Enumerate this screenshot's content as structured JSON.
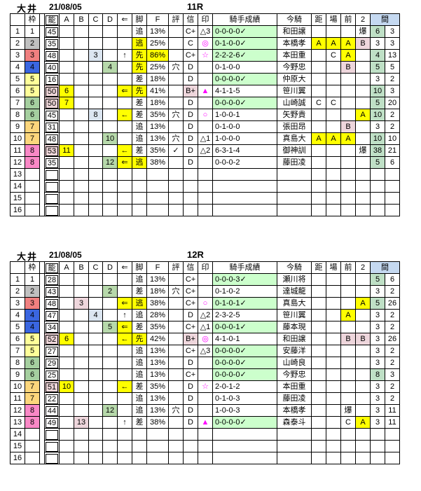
{
  "headers": {
    "blank": "",
    "waku": "枠",
    "nou": "能",
    "A": "A",
    "B": "B",
    "C": "C",
    "D": "D",
    "arrow": "⇐",
    "kyaku": "脚",
    "f": "F",
    "hyo": "評",
    "shin": "信",
    "mark": "印",
    "record": "騎手成績",
    "jockey": "今騎",
    "kyo": "距",
    "ba": "場",
    "mae": "前",
    "two": "2",
    "aida": "間"
  },
  "colors": {
    "highlight_yellow": "#ffff00",
    "pink": "#eed6dc",
    "light_blue": "#dce6f1",
    "pale_green": "#b7d9ab",
    "interval_green": "#bfe0c6",
    "record_green": "#ccffcc",
    "header_blue": "#c5d9f1",
    "mark_magenta": "#ff00ff",
    "frame2_gray": "#c0c0c0",
    "frame3_red": "#f08080",
    "frame4_blue": "#3a66e0",
    "frame5_yellow": "#ffff99",
    "frame6_green": "#a5cf9f",
    "frame7_orange": "#fcd67c",
    "frame8_pink": "#fa88c6"
  },
  "tables": [
    {
      "track": "大井",
      "date": "21/08/05",
      "race": "11R",
      "rows": [
        {
          "num": "1",
          "waku": [
            "1",
            "w1"
          ],
          "nou": [
            "45",
            ""
          ],
          "kyaku": [
            "追",
            ""
          ],
          "f": [
            "13%",
            ""
          ],
          "shin": [
            "C+",
            ""
          ],
          "mark": [
            "△3",
            ""
          ],
          "record": [
            "0-0-0-0✓",
            "gg"
          ],
          "jockey": "和田譲",
          "two": [
            "爆",
            ""
          ],
          "m1": [
            "6",
            "mg"
          ],
          "m2": "3"
        },
        {
          "num": "2",
          "waku": [
            "2",
            "w2"
          ],
          "nou": [
            "35",
            ""
          ],
          "kyaku": [
            "逃",
            "y"
          ],
          "f": [
            "25%",
            ""
          ],
          "shin": [
            "C",
            ""
          ],
          "mark": [
            "◎",
            "m"
          ],
          "record": [
            "0-1-0-0✓",
            "gg"
          ],
          "jockey": "本橋孝",
          "kyo": [
            "A",
            "y"
          ],
          "ba": [
            "A",
            "y"
          ],
          "mae": [
            "A",
            "y"
          ],
          "two": [
            "B",
            "p"
          ],
          "m1": [
            "3",
            ""
          ],
          "m2": "3"
        },
        {
          "num": "3",
          "waku": [
            "3",
            "w3"
          ],
          "nou": [
            "48",
            ""
          ],
          "C": "3",
          "arrow": [
            "↑",
            ""
          ],
          "kyaku": [
            "先",
            "y"
          ],
          "f": [
            "86%",
            "y"
          ],
          "shin": [
            "C+",
            ""
          ],
          "mark": [
            "☆",
            "m"
          ],
          "record": [
            "2-2-2-6✓",
            "gg"
          ],
          "jockey": "本田重",
          "ba": [
            "C",
            ""
          ],
          "mae": [
            "A",
            "y"
          ],
          "m1": [
            "4",
            "mg"
          ],
          "m2": "13"
        },
        {
          "num": "4",
          "waku": [
            "4",
            "w4"
          ],
          "nou": [
            "40",
            ""
          ],
          "D": "4",
          "kyaku": [
            "先",
            "y"
          ],
          "f": [
            "25%",
            ""
          ],
          "hyo": "穴",
          "shin": [
            "D",
            ""
          ],
          "record": [
            "0-1-0-0",
            ""
          ],
          "jockey": "今野忠",
          "mae": [
            "B",
            "p"
          ],
          "m1": [
            "5",
            "mg"
          ],
          "m2": "5"
        },
        {
          "num": "5",
          "waku": [
            "5",
            "w5"
          ],
          "nou": [
            "16",
            ""
          ],
          "kyaku": [
            "差",
            ""
          ],
          "f": [
            "18%",
            ""
          ],
          "shin": [
            "D",
            ""
          ],
          "record": [
            "0-0-0-0✓",
            "gg"
          ],
          "jockey": "仲原大",
          "m1": [
            "3",
            ""
          ],
          "m2": "2"
        },
        {
          "num": "6",
          "waku": [
            "5",
            "w5"
          ],
          "nou": [
            "50",
            "hot"
          ],
          "A": "6",
          "arrow": [
            "⇐",
            "y"
          ],
          "kyaku": [
            "先",
            "y"
          ],
          "f": [
            "41%",
            ""
          ],
          "shin": [
            "B+",
            "p"
          ],
          "mark": [
            "▲",
            "m"
          ],
          "record": [
            "4-1-1-5",
            ""
          ],
          "jockey": "笹川翼",
          "m1": [
            "10",
            "mg"
          ],
          "m2": "3"
        },
        {
          "num": "7",
          "waku": [
            "6",
            "w6"
          ],
          "nou": [
            "50",
            "hot"
          ],
          "A": "7",
          "kyaku": [
            "差",
            ""
          ],
          "f": [
            "18%",
            ""
          ],
          "shin": [
            "D",
            ""
          ],
          "record": [
            "0-0-0-0✓",
            "gg"
          ],
          "jockey": "山崎誠",
          "kyo": [
            "C",
            ""
          ],
          "ba": [
            "C",
            ""
          ],
          "m1": [
            "5",
            "mg"
          ],
          "m2": "20"
        },
        {
          "num": "8",
          "waku": [
            "6",
            "w6"
          ],
          "nou": [
            "45",
            ""
          ],
          "C": "8",
          "arrow": [
            "←",
            "y"
          ],
          "kyaku": [
            "差",
            ""
          ],
          "f": [
            "35%",
            ""
          ],
          "hyo": "穴",
          "shin": [
            "D",
            ""
          ],
          "mark": [
            "○",
            "m"
          ],
          "record": [
            "1-0-0-1",
            ""
          ],
          "jockey": "矢野貴",
          "two": [
            "A",
            "y"
          ],
          "m1": [
            "10",
            "mg"
          ],
          "m2": "2"
        },
        {
          "num": "9",
          "waku": [
            "7",
            "w7"
          ],
          "nou": [
            "31",
            ""
          ],
          "kyaku": [
            "追",
            ""
          ],
          "f": [
            "13%",
            ""
          ],
          "shin": [
            "D",
            ""
          ],
          "record": [
            "0-1-0-0",
            ""
          ],
          "jockey": "張田昂",
          "mae": [
            "B",
            "p"
          ],
          "m1": [
            "3",
            ""
          ],
          "m2": "2"
        },
        {
          "num": "10",
          "waku": [
            "7",
            "w7"
          ],
          "nou": [
            "48",
            ""
          ],
          "D": "10",
          "kyaku": [
            "追",
            ""
          ],
          "f": [
            "13%",
            ""
          ],
          "hyo": "穴",
          "shin": [
            "D",
            ""
          ],
          "mark": [
            "△1",
            ""
          ],
          "record": [
            "1-0-0-0",
            ""
          ],
          "jockey": "真島大",
          "kyo": [
            "A",
            "y"
          ],
          "ba": [
            "A",
            "y"
          ],
          "mae": [
            "A",
            "y"
          ],
          "m1": [
            "10",
            "mg"
          ],
          "m2": "10"
        },
        {
          "num": "11",
          "waku": [
            "8",
            "w8"
          ],
          "nou": [
            "53",
            "hot"
          ],
          "A": "11",
          "arrow": [
            "←",
            "y"
          ],
          "kyaku": [
            "差",
            ""
          ],
          "f": [
            "35%",
            ""
          ],
          "hyo": "✓",
          "shin": [
            "D",
            ""
          ],
          "mark": [
            "△2",
            ""
          ],
          "record": [
            "6-3-1-4",
            ""
          ],
          "jockey": "御神訓",
          "two": [
            "爆",
            ""
          ],
          "m1": [
            "38",
            "mg"
          ],
          "m2": "21"
        },
        {
          "num": "12",
          "waku": [
            "8",
            "w8"
          ],
          "nou": [
            "35",
            ""
          ],
          "D": "12",
          "arrow": [
            "⇐",
            "y"
          ],
          "kyaku": [
            "逃",
            "y"
          ],
          "f": [
            "38%",
            ""
          ],
          "shin": [
            "D",
            ""
          ],
          "record": [
            "0-0-0-2",
            ""
          ],
          "jockey": "藤田凌",
          "m1": [
            "5",
            "mg"
          ],
          "m2": "6"
        },
        {
          "num": "13"
        },
        {
          "num": "14"
        },
        {
          "num": "15"
        },
        {
          "num": "16"
        }
      ]
    },
    {
      "track": "大井",
      "date": "21/08/05",
      "race": "12R",
      "rows": [
        {
          "num": "1",
          "waku": [
            "1",
            "w1"
          ],
          "nou": [
            "28",
            ""
          ],
          "kyaku": [
            "追",
            ""
          ],
          "f": [
            "13%",
            ""
          ],
          "shin": [
            "C+",
            ""
          ],
          "record": [
            "0-0-0-3✓",
            "gg"
          ],
          "jockey": "瀬川将",
          "m1": [
            "5",
            "mg"
          ],
          "m2": "6"
        },
        {
          "num": "2",
          "waku": [
            "2",
            "w2"
          ],
          "nou": [
            "43",
            ""
          ],
          "D": "2",
          "kyaku": [
            "差",
            ""
          ],
          "f": [
            "18%",
            ""
          ],
          "hyo": "穴",
          "shin": [
            "C+",
            ""
          ],
          "record": [
            "0-1-0-2",
            ""
          ],
          "jockey": "達城龍",
          "m1": [
            "3",
            ""
          ],
          "m2": "2"
        },
        {
          "num": "3",
          "waku": [
            "3",
            "w3"
          ],
          "nou": [
            "48",
            ""
          ],
          "B": "3",
          "arrow": [
            "⇐",
            "y"
          ],
          "kyaku": [
            "逃",
            "y"
          ],
          "f": [
            "38%",
            ""
          ],
          "shin": [
            "C+",
            ""
          ],
          "mark": [
            "○",
            "m"
          ],
          "record": [
            "0-1-0-1✓",
            "gg"
          ],
          "jockey": "真島大",
          "two": [
            "A",
            "y"
          ],
          "m1": [
            "5",
            "mg"
          ],
          "m2": "26"
        },
        {
          "num": "4",
          "waku": [
            "4",
            "w4"
          ],
          "nou": [
            "47",
            ""
          ],
          "C": "4",
          "arrow": [
            "↑",
            ""
          ],
          "kyaku": [
            "追",
            ""
          ],
          "f": [
            "28%",
            ""
          ],
          "shin": [
            "D",
            ""
          ],
          "mark": [
            "△2",
            ""
          ],
          "record": [
            "2-3-2-5",
            ""
          ],
          "jockey": "笹川翼",
          "mae": [
            "A",
            "y"
          ],
          "m1": [
            "3",
            ""
          ],
          "m2": "2"
        },
        {
          "num": "5",
          "waku": [
            "4",
            "w4"
          ],
          "nou": [
            "34",
            ""
          ],
          "D": "5",
          "arrow": [
            "⇐",
            "y"
          ],
          "kyaku": [
            "差",
            ""
          ],
          "f": [
            "35%",
            ""
          ],
          "shin": [
            "C+",
            ""
          ],
          "mark": [
            "△1",
            ""
          ],
          "record": [
            "0-0-0-1✓",
            "gg"
          ],
          "jockey": "藤本現",
          "m1": [
            "3",
            ""
          ],
          "m2": "2"
        },
        {
          "num": "6",
          "waku": [
            "5",
            "w5"
          ],
          "nou": [
            "52",
            "hot"
          ],
          "A": "6",
          "arrow": [
            "←",
            "y"
          ],
          "kyaku": [
            "先",
            "y"
          ],
          "f": [
            "42%",
            ""
          ],
          "shin": [
            "B+",
            "p"
          ],
          "mark": [
            "◎",
            "m"
          ],
          "record": [
            "4-1-0-1",
            ""
          ],
          "jockey": "和田譲",
          "mae": [
            "B",
            "p"
          ],
          "two": [
            "B",
            "p"
          ],
          "m1": [
            "3",
            ""
          ],
          "m2": "26"
        },
        {
          "num": "7",
          "waku": [
            "5",
            "w5"
          ],
          "nou": [
            "27",
            ""
          ],
          "kyaku": [
            "追",
            ""
          ],
          "f": [
            "13%",
            ""
          ],
          "shin": [
            "C+",
            ""
          ],
          "mark": [
            "△3",
            ""
          ],
          "record": [
            "0-0-0-0✓",
            "gg"
          ],
          "jockey": "安藤洋",
          "m1": [
            "3",
            ""
          ],
          "m2": "2"
        },
        {
          "num": "8",
          "waku": [
            "6",
            "w6"
          ],
          "nou": [
            "29",
            ""
          ],
          "kyaku": [
            "追",
            ""
          ],
          "f": [
            "13%",
            ""
          ],
          "shin": [
            "D",
            ""
          ],
          "record": [
            "0-0-0-0✓",
            "gg"
          ],
          "jockey": "山崎良",
          "m1": [
            "3",
            ""
          ],
          "m2": "2"
        },
        {
          "num": "9",
          "waku": [
            "6",
            "w6"
          ],
          "nou": [
            "25",
            ""
          ],
          "kyaku": [
            "追",
            ""
          ],
          "f": [
            "13%",
            ""
          ],
          "shin": [
            "C+",
            ""
          ],
          "record": [
            "0-0-0-0✓",
            "gg"
          ],
          "jockey": "今野忠",
          "m1": [
            "8",
            "mg"
          ],
          "m2": "3"
        },
        {
          "num": "10",
          "waku": [
            "7",
            "w7"
          ],
          "nou": [
            "51",
            "hot"
          ],
          "A": "10",
          "arrow": [
            "←",
            "y"
          ],
          "kyaku": [
            "差",
            ""
          ],
          "f": [
            "35%",
            ""
          ],
          "shin": [
            "D",
            ""
          ],
          "mark": [
            "☆",
            "m"
          ],
          "record": [
            "2-0-1-2",
            ""
          ],
          "jockey": "本田重",
          "m1": [
            "3",
            ""
          ],
          "m2": "2"
        },
        {
          "num": "11",
          "waku": [
            "7",
            "w7"
          ],
          "nou": [
            "22",
            ""
          ],
          "kyaku": [
            "追",
            ""
          ],
          "f": [
            "13%",
            ""
          ],
          "shin": [
            "D",
            ""
          ],
          "record": [
            "0-1-0-3",
            ""
          ],
          "jockey": "藤田凌",
          "m1": [
            "3",
            ""
          ],
          "m2": "2"
        },
        {
          "num": "12",
          "waku": [
            "8",
            "w8"
          ],
          "nou": [
            "44",
            ""
          ],
          "D": "12",
          "kyaku": [
            "追",
            ""
          ],
          "f": [
            "13%",
            ""
          ],
          "hyo": "穴",
          "shin": [
            "D",
            ""
          ],
          "record": [
            "1-0-0-3",
            ""
          ],
          "jockey": "本橋孝",
          "mae": [
            "爆",
            ""
          ],
          "m1": [
            "3",
            ""
          ],
          "m2": "11"
        },
        {
          "num": "13",
          "waku": [
            "8",
            "w8"
          ],
          "nou": [
            "49",
            ""
          ],
          "B": "13",
          "arrow": [
            "↑",
            ""
          ],
          "kyaku": [
            "差",
            ""
          ],
          "f": [
            "38%",
            ""
          ],
          "shin": [
            "D",
            ""
          ],
          "mark": [
            "▲",
            "m"
          ],
          "record": [
            "0-0-0-0✓",
            "gg"
          ],
          "jockey": "森泰斗",
          "mae": [
            "C",
            ""
          ],
          "two": [
            "A",
            "y"
          ],
          "m1": [
            "3",
            ""
          ],
          "m2": "11"
        },
        {
          "num": "14"
        },
        {
          "num": "15"
        },
        {
          "num": "16"
        }
      ]
    }
  ]
}
